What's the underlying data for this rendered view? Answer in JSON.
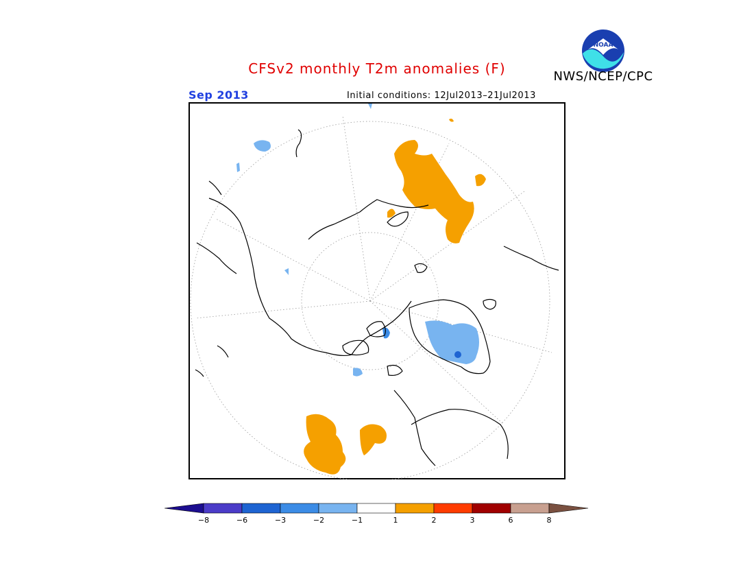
{
  "header": {
    "title": "CFSv2 monthly T2m anomalies (F)",
    "agency": "NWS/NCEP/CPC",
    "logo_text": "NOAA",
    "month": "Sep 2013",
    "initial_conditions": "Initial conditions: 12Jul2013–21Jul2013"
  },
  "map": {
    "projection": "north polar stereographic",
    "frame_color": "#000000",
    "coastline_color": "#000000",
    "graticule_color": "#999999"
  },
  "legend": {
    "colors": [
      "#1c0e90",
      "#4b3cc8",
      "#1e64d2",
      "#3c8ce6",
      "#78b4f0",
      "#ffffff",
      "#f5a000",
      "#ff3c00",
      "#a00000",
      "#c8a090",
      "#7a5040"
    ],
    "labels": [
      "−8",
      "−6",
      "−3",
      "−2",
      "−1",
      "1",
      "2",
      "3",
      "6",
      "8"
    ]
  }
}
